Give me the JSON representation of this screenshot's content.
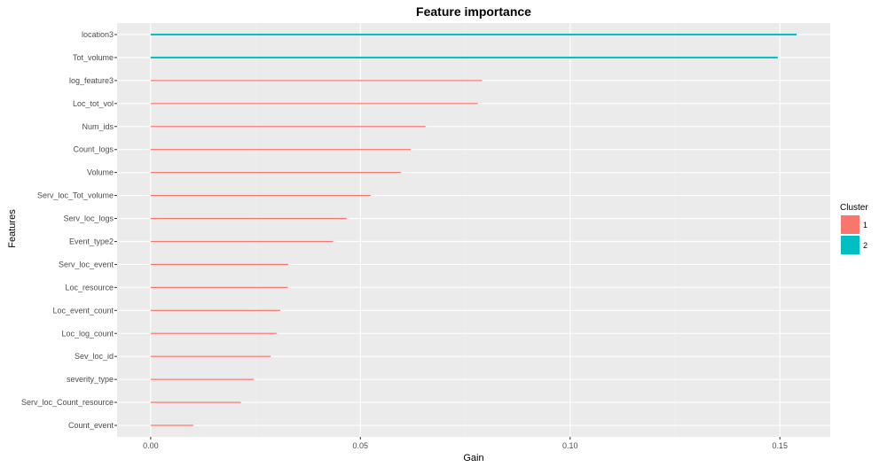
{
  "chart_data": {
    "type": "bar",
    "orientation": "horizontal",
    "title": "Feature importance",
    "xlabel": "Gain",
    "ylabel": "Features",
    "xlim": [
      -0.008,
      0.162
    ],
    "xticks": [
      0.0,
      0.05,
      0.1,
      0.15
    ],
    "xtick_labels": [
      "0.00",
      "0.05",
      "0.10",
      "0.15"
    ],
    "grid": true,
    "legend": {
      "title": "Cluster",
      "position": "right",
      "entries": [
        {
          "label": "1",
          "color": "#F8766D"
        },
        {
          "label": "2",
          "color": "#00BFC4"
        }
      ]
    },
    "bars": [
      {
        "feature": "location3",
        "gain": 0.154,
        "cluster": "2"
      },
      {
        "feature": "Tot_volume",
        "gain": 0.1495,
        "cluster": "2"
      },
      {
        "feature": "log_feature3",
        "gain": 0.079,
        "cluster": "1"
      },
      {
        "feature": "Loc_tot_vol",
        "gain": 0.078,
        "cluster": "1"
      },
      {
        "feature": "Num_ids",
        "gain": 0.0655,
        "cluster": "1"
      },
      {
        "feature": "Count_logs",
        "gain": 0.062,
        "cluster": "1"
      },
      {
        "feature": "Volume",
        "gain": 0.0597,
        "cluster": "1"
      },
      {
        "feature": "Serv_loc_Tot_volume",
        "gain": 0.0525,
        "cluster": "1"
      },
      {
        "feature": "Serv_loc_logs",
        "gain": 0.0468,
        "cluster": "1"
      },
      {
        "feature": "Event_type2",
        "gain": 0.0435,
        "cluster": "1"
      },
      {
        "feature": "Serv_loc_event",
        "gain": 0.0328,
        "cluster": "1"
      },
      {
        "feature": "Loc_resource",
        "gain": 0.0327,
        "cluster": "1"
      },
      {
        "feature": "Loc_event_count",
        "gain": 0.0309,
        "cluster": "1"
      },
      {
        "feature": "Loc_log_count",
        "gain": 0.03,
        "cluster": "1"
      },
      {
        "feature": "Sev_loc_id",
        "gain": 0.0286,
        "cluster": "1"
      },
      {
        "feature": "severity_type",
        "gain": 0.0246,
        "cluster": "1"
      },
      {
        "feature": "Serv_loc_Count_resource",
        "gain": 0.0215,
        "cluster": "1"
      },
      {
        "feature": "Count_event",
        "gain": 0.0102,
        "cluster": "1"
      }
    ],
    "colors": {
      "panel_background": "#EBEBEB",
      "grid_major": "#FFFFFF",
      "grid_minor": "#F2F2F2",
      "tick": "#333333"
    }
  }
}
